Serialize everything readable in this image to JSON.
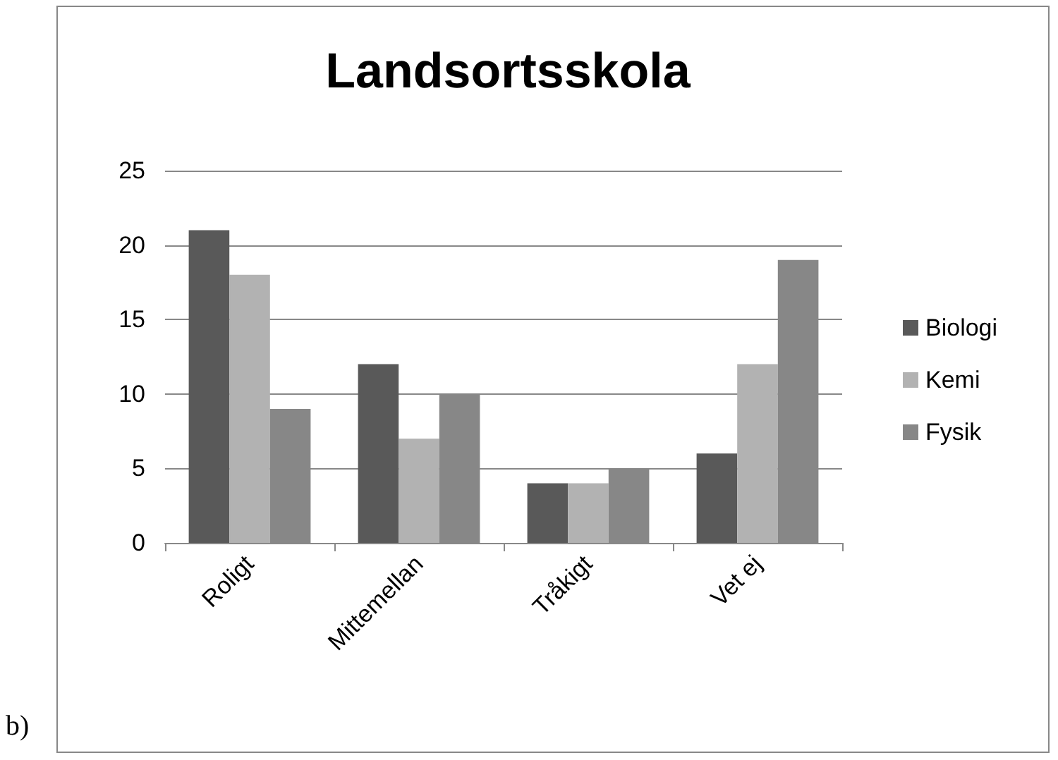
{
  "chart_data": {
    "type": "bar",
    "title": "Landsortsskola",
    "categories": [
      "Roligt",
      "Mittemellan",
      "Tråkigt",
      "Vet ej"
    ],
    "series": [
      {
        "name": "Biologi",
        "color": "#595959",
        "values": [
          21,
          12,
          4,
          6
        ]
      },
      {
        "name": "Kemi",
        "color": "#b2b2b2",
        "values": [
          18,
          7,
          4,
          12
        ]
      },
      {
        "name": "Fysik",
        "color": "#878787",
        "values": [
          9,
          10,
          5,
          19
        ]
      }
    ],
    "ylim": [
      0,
      25
    ],
    "yticks": [
      0,
      5,
      10,
      15,
      20,
      25
    ],
    "grid": "y",
    "legend": "right",
    "annotations": [
      "b)"
    ]
  }
}
